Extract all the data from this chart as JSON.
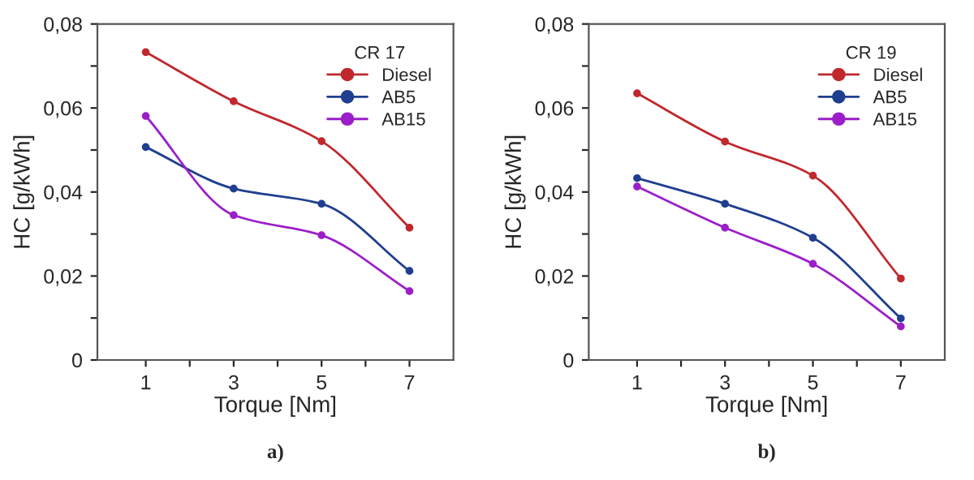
{
  "chart_data": [
    {
      "type": "line",
      "x": [
        1,
        3,
        5,
        7
      ],
      "xlabel": "Torque [Nm]",
      "ylabel": "HC [g/kWh]",
      "legend_title": "CR 17",
      "legend": "top right",
      "marker": "circle",
      "line_style": "solid",
      "grid": false,
      "xlim": [
        -0.1,
        8.0
      ],
      "xticks": [
        1,
        {
          "value": 2,
          "label": null
        },
        3,
        {
          "value": 4,
          "label": null
        },
        5,
        {
          "value": 6,
          "label": null
        },
        7
      ],
      "ylim": [
        0,
        0.08
      ],
      "yticks": [
        {
          "value": 0,
          "label": "0"
        },
        {
          "value": 0.01,
          "label": null
        },
        {
          "value": 0.02,
          "label": "0,02"
        },
        {
          "value": 0.03,
          "label": null
        },
        {
          "value": 0.04,
          "label": "0,04"
        },
        {
          "value": 0.05,
          "label": null
        },
        {
          "value": 0.06,
          "label": "0,06"
        },
        {
          "value": 0.07,
          "label": null
        },
        {
          "value": 0.08,
          "label": "0,08"
        }
      ],
      "series": [
        {
          "name": "Diesel",
          "color": "#c0282d",
          "values": [
            0.0733,
            0.0616,
            0.0521,
            0.0315
          ]
        },
        {
          "name": "AB5",
          "color": "#1f3f8f",
          "values": [
            0.0507,
            0.0408,
            0.0372,
            0.0212
          ]
        },
        {
          "name": "AB15",
          "color": "#9b1fc8",
          "values": [
            0.0581,
            0.0345,
            0.0297,
            0.0164
          ]
        }
      ],
      "annotations": [
        "a)"
      ]
    },
    {
      "type": "line",
      "x": [
        1,
        3,
        5,
        7
      ],
      "xlabel": "Torque [Nm]",
      "ylabel": "HC [g/kWh]",
      "legend_title": "CR 19",
      "legend": "top right",
      "marker": "circle",
      "line_style": "solid",
      "grid": false,
      "xlim": [
        -0.1,
        8.0
      ],
      "xticks": [
        1,
        {
          "value": 2,
          "label": null
        },
        3,
        {
          "value": 4,
          "label": null
        },
        5,
        {
          "value": 6,
          "label": null
        },
        7
      ],
      "ylim": [
        0,
        0.08
      ],
      "yticks": [
        {
          "value": 0,
          "label": "0"
        },
        {
          "value": 0.01,
          "label": null
        },
        {
          "value": 0.02,
          "label": "0,02"
        },
        {
          "value": 0.03,
          "label": null
        },
        {
          "value": 0.04,
          "label": "0,04"
        },
        {
          "value": 0.05,
          "label": null
        },
        {
          "value": 0.06,
          "label": "0,06"
        },
        {
          "value": 0.07,
          "label": null
        },
        {
          "value": 0.08,
          "label": "0,08"
        }
      ],
      "series": [
        {
          "name": "Diesel",
          "color": "#c0282d",
          "values": [
            0.0635,
            0.052,
            0.0439,
            0.0194
          ]
        },
        {
          "name": "AB5",
          "color": "#1f3f8f",
          "values": [
            0.0433,
            0.0372,
            0.0291,
            0.0099
          ]
        },
        {
          "name": "AB15",
          "color": "#9b1fc8",
          "values": [
            0.0413,
            0.0315,
            0.0229,
            0.008
          ]
        }
      ],
      "annotations": [
        "b)"
      ]
    }
  ]
}
